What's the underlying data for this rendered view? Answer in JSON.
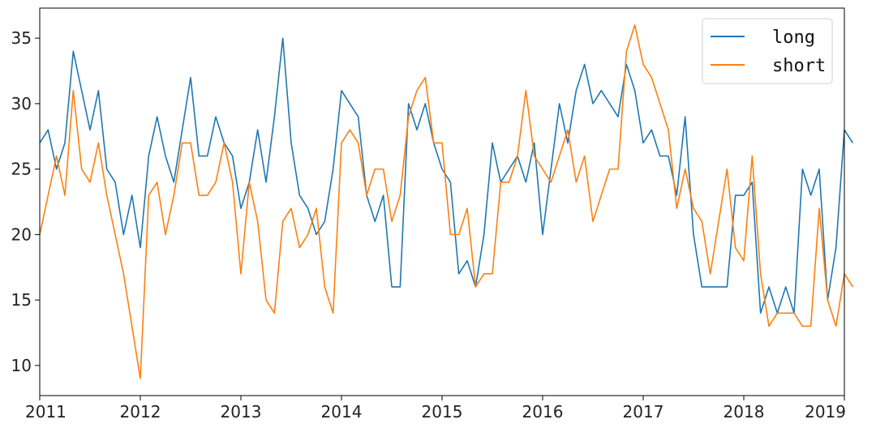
{
  "chart_data": {
    "type": "line",
    "title": "",
    "xlabel": "",
    "ylabel": "",
    "x_start": "2011-01",
    "x_interval": "month",
    "x_ticks": [
      "2011",
      "2012",
      "2013",
      "2014",
      "2015",
      "2016",
      "2017",
      "2018",
      "2019"
    ],
    "xlim": [
      "2011-01",
      "2019-01"
    ],
    "y_ticks": [
      10,
      15,
      20,
      25,
      30,
      35
    ],
    "ylim": [
      7.7,
      37.3
    ],
    "grid": false,
    "legend": {
      "position": "top-right"
    },
    "series": [
      {
        "name": "long",
        "color": "#1f77b4",
        "values": [
          27,
          28,
          25,
          27,
          34,
          31,
          28,
          31,
          25,
          24,
          20,
          23,
          19,
          26,
          29,
          26,
          24,
          28,
          32,
          26,
          26,
          29,
          27,
          26,
          22,
          24,
          28,
          24,
          29,
          35,
          27,
          23,
          22,
          20,
          21,
          25,
          31,
          30,
          29,
          23,
          21,
          23,
          16,
          16,
          30,
          28,
          30,
          27,
          25,
          24,
          17,
          18,
          16,
          20,
          27,
          24,
          25,
          26,
          24,
          27,
          20,
          25,
          30,
          27,
          31,
          33,
          30,
          31,
          30,
          29,
          33,
          31,
          27,
          28,
          26,
          26,
          23,
          29,
          20,
          16,
          16,
          16,
          16,
          23,
          23,
          24,
          14,
          16,
          14,
          16,
          14,
          25,
          23,
          25,
          15,
          19,
          28,
          27
        ]
      },
      {
        "name": "short",
        "color": "#ff7f0e",
        "values": [
          20,
          23,
          26,
          23,
          31,
          25,
          24,
          27,
          23,
          20,
          17,
          13,
          9,
          23,
          24,
          20,
          23,
          27,
          27,
          23,
          23,
          24,
          27,
          24,
          17,
          24,
          21,
          15,
          14,
          21,
          22,
          19,
          20,
          22,
          16,
          14,
          27,
          28,
          27,
          23,
          25,
          25,
          21,
          23,
          29,
          31,
          32,
          27,
          27,
          20,
          20,
          22,
          16,
          17,
          17,
          24,
          24,
          26,
          31,
          26,
          25,
          24,
          26,
          28,
          24,
          26,
          21,
          23,
          25,
          25,
          34,
          36,
          33,
          32,
          30,
          28,
          22,
          25,
          22,
          21,
          17,
          21,
          25,
          19,
          18,
          26,
          17,
          13,
          14,
          14,
          14,
          13,
          13,
          22,
          15,
          13,
          17,
          16
        ]
      }
    ]
  }
}
